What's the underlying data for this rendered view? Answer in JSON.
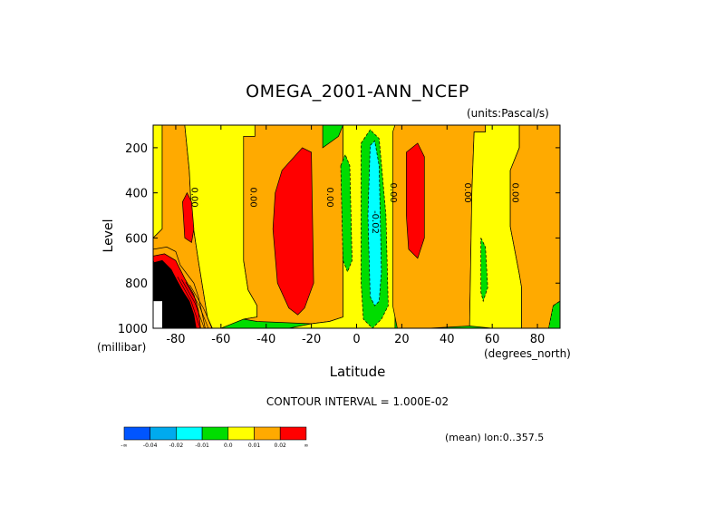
{
  "chart_data": {
    "type": "heatmap",
    "title": "OMEGA_2001-ANN_NCEP",
    "units": "(units:Pascal/s)",
    "xlabel": "Latitude",
    "xunit": "(degrees_north)",
    "ylabel": "Level",
    "yunit": "(millibar)",
    "xlim": [
      -90,
      90
    ],
    "ylim": [
      1000,
      100
    ],
    "xticks": [
      -80,
      -60,
      -40,
      -20,
      0,
      20,
      40,
      60,
      80
    ],
    "yticks": [
      200,
      400,
      600,
      800,
      1000
    ],
    "contour_interval": "CONTOUR INTERVAL = 1.000E-02",
    "contour_labels": [
      {
        "x": -73,
        "y": 420,
        "text": "0.00"
      },
      {
        "x": -47,
        "y": 420,
        "text": "0.00"
      },
      {
        "x": -13,
        "y": 420,
        "text": "0.00"
      },
      {
        "x": 7,
        "y": 530,
        "text": "-0.02"
      },
      {
        "x": 15,
        "y": 400,
        "text": "0.00"
      },
      {
        "x": 48,
        "y": 400,
        "text": "0.00"
      },
      {
        "x": 69,
        "y": 400,
        "text": "0.00"
      }
    ],
    "regions": [
      {
        "category": 4,
        "points": [
          [
            -90,
            100
          ],
          [
            -86,
            100
          ],
          [
            -86,
            560
          ],
          [
            -90,
            600
          ]
        ]
      },
      {
        "category": 5,
        "points": [
          [
            -86,
            100
          ],
          [
            -76,
            100
          ],
          [
            -74,
            300
          ],
          [
            -73,
            500
          ],
          [
            -70,
            700
          ],
          [
            -66,
            950
          ],
          [
            -64,
            1000
          ],
          [
            -90,
            1000
          ],
          [
            -90,
            600
          ],
          [
            -86,
            560
          ]
        ]
      },
      {
        "category": 4,
        "points": [
          [
            -76,
            100
          ],
          [
            -45,
            100
          ],
          [
            -45,
            150
          ],
          [
            -50,
            150
          ],
          [
            -50,
            700
          ],
          [
            -48,
            830
          ],
          [
            -44,
            900
          ],
          [
            -44,
            950
          ],
          [
            -50,
            960
          ],
          [
            -60,
            1000
          ],
          [
            -64,
            1000
          ],
          [
            -66,
            950
          ],
          [
            -70,
            700
          ],
          [
            -73,
            500
          ],
          [
            -74,
            300
          ]
        ]
      },
      {
        "category": 5,
        "points": [
          [
            -45,
            100
          ],
          [
            -15,
            100
          ],
          [
            -15,
            200
          ],
          [
            -8,
            150
          ],
          [
            -6,
            100
          ],
          [
            -6,
            950
          ],
          [
            -12,
            970
          ],
          [
            -20,
            980
          ],
          [
            -44,
            970
          ],
          [
            -50,
            960
          ],
          [
            -44,
            950
          ],
          [
            -44,
            900
          ],
          [
            -48,
            830
          ],
          [
            -50,
            700
          ],
          [
            -50,
            150
          ],
          [
            -45,
            150
          ]
        ]
      },
      {
        "category": 6,
        "points": [
          [
            -33,
            300
          ],
          [
            -24,
            200
          ],
          [
            -20,
            220
          ],
          [
            -19,
            800
          ],
          [
            -23,
            910
          ],
          [
            -26,
            940
          ],
          [
            -30,
            910
          ],
          [
            -35,
            800
          ],
          [
            -37,
            560
          ],
          [
            -36,
            400
          ]
        ]
      },
      {
        "category": 4,
        "points": [
          [
            -6,
            100
          ],
          [
            17,
            100
          ],
          [
            17,
            1000
          ],
          [
            -30,
            1000
          ],
          [
            -20,
            980
          ],
          [
            -12,
            970
          ],
          [
            -6,
            950
          ]
        ]
      },
      {
        "category": 3,
        "points": [
          [
            -7,
            280
          ],
          [
            -5,
            230
          ],
          [
            -3,
            280
          ],
          [
            -2,
            700
          ],
          [
            -4,
            750
          ],
          [
            -6,
            700
          ]
        ]
      },
      {
        "category": 3,
        "points": [
          [
            2,
            180
          ],
          [
            6,
            120
          ],
          [
            10,
            160
          ],
          [
            13,
            500
          ],
          [
            14,
            900
          ],
          [
            11,
            960
          ],
          [
            7,
            1000
          ],
          [
            3,
            960
          ],
          [
            2,
            800
          ],
          [
            2,
            400
          ]
        ]
      },
      {
        "category": 2,
        "points": [
          [
            6,
            190
          ],
          [
            8,
            170
          ],
          [
            10,
            280
          ],
          [
            11,
            750
          ],
          [
            10,
            880
          ],
          [
            8,
            900
          ],
          [
            6,
            860
          ],
          [
            5,
            500
          ]
        ]
      },
      {
        "category": 5,
        "points": [
          [
            17,
            100
          ],
          [
            57,
            100
          ],
          [
            57,
            130
          ],
          [
            52,
            130
          ],
          [
            51,
            400
          ],
          [
            50,
            990
          ],
          [
            32,
            1000
          ],
          [
            18,
            1000
          ],
          [
            16,
            900
          ],
          [
            16,
            130
          ]
        ]
      },
      {
        "category": 6,
        "points": [
          [
            22,
            220
          ],
          [
            27,
            180
          ],
          [
            30,
            240
          ],
          [
            30,
            600
          ],
          [
            27,
            690
          ],
          [
            23,
            650
          ],
          [
            22,
            500
          ]
        ]
      },
      {
        "category": 4,
        "points": [
          [
            57,
            100
          ],
          [
            72,
            100
          ],
          [
            72,
            200
          ],
          [
            68,
            300
          ],
          [
            68,
            550
          ],
          [
            72,
            760
          ],
          [
            73,
            820
          ],
          [
            73,
            1000
          ],
          [
            60,
            1000
          ],
          [
            50,
            990
          ],
          [
            51,
            400
          ],
          [
            52,
            130
          ],
          [
            57,
            130
          ]
        ]
      },
      {
        "category": 3,
        "points": [
          [
            55,
            600
          ],
          [
            57,
            640
          ],
          [
            58,
            820
          ],
          [
            56,
            880
          ],
          [
            55,
            840
          ]
        ]
      },
      {
        "category": 5,
        "points": [
          [
            72,
            100
          ],
          [
            90,
            100
          ],
          [
            90,
            880
          ],
          [
            87,
            900
          ],
          [
            85,
            1000
          ],
          [
            73,
            1000
          ],
          [
            73,
            820
          ],
          [
            72,
            760
          ],
          [
            68,
            550
          ],
          [
            68,
            300
          ],
          [
            72,
            200
          ]
        ]
      },
      {
        "category": 3,
        "points": [
          [
            87,
            900
          ],
          [
            90,
            880
          ],
          [
            90,
            1000
          ],
          [
            85,
            1000
          ]
        ]
      },
      {
        "category": 5,
        "points": [
          [
            -90,
            650
          ],
          [
            -84,
            640
          ],
          [
            -80,
            660
          ],
          [
            -78,
            720
          ],
          [
            -72,
            800
          ],
          [
            -70,
            860
          ],
          [
            -68,
            950
          ],
          [
            -67,
            1000
          ],
          [
            -90,
            1000
          ]
        ]
      },
      {
        "category": 6,
        "points": [
          [
            -90,
            680
          ],
          [
            -85,
            670
          ],
          [
            -80,
            700
          ],
          [
            -76,
            780
          ],
          [
            -72,
            850
          ],
          [
            -70,
            920
          ],
          [
            -69,
            1000
          ],
          [
            -90,
            1000
          ]
        ]
      },
      {
        "category": 7,
        "points": [
          [
            -90,
            710
          ],
          [
            -86,
            700
          ],
          [
            -82,
            740
          ],
          [
            -78,
            820
          ],
          [
            -74,
            880
          ],
          [
            -72,
            940
          ],
          [
            -71,
            1000
          ],
          [
            -90,
            1000
          ]
        ]
      },
      {
        "category": 6,
        "points": [
          [
            -77,
            440
          ],
          [
            -75,
            400
          ],
          [
            -73,
            440
          ],
          [
            -72,
            560
          ],
          [
            -73,
            620
          ],
          [
            -76,
            600
          ]
        ]
      }
    ],
    "missing_regions": [
      {
        "points": [
          [
            -90,
            880
          ],
          [
            -86,
            880
          ],
          [
            -86,
            1000
          ],
          [
            -90,
            1000
          ]
        ]
      }
    ]
  },
  "colorbar": {
    "colors": [
      "#0055ff",
      "#00aaee",
      "#00ffff",
      "#00dd00",
      "#ffff00",
      "#ffaa00",
      "#ff0000"
    ],
    "labels": [
      "-∞",
      "-0.04",
      "-0.02",
      "-0.01",
      "0.0",
      "0.01",
      "0.02",
      "∞"
    ]
  },
  "meta_text": "(mean) lon:0..357.5"
}
